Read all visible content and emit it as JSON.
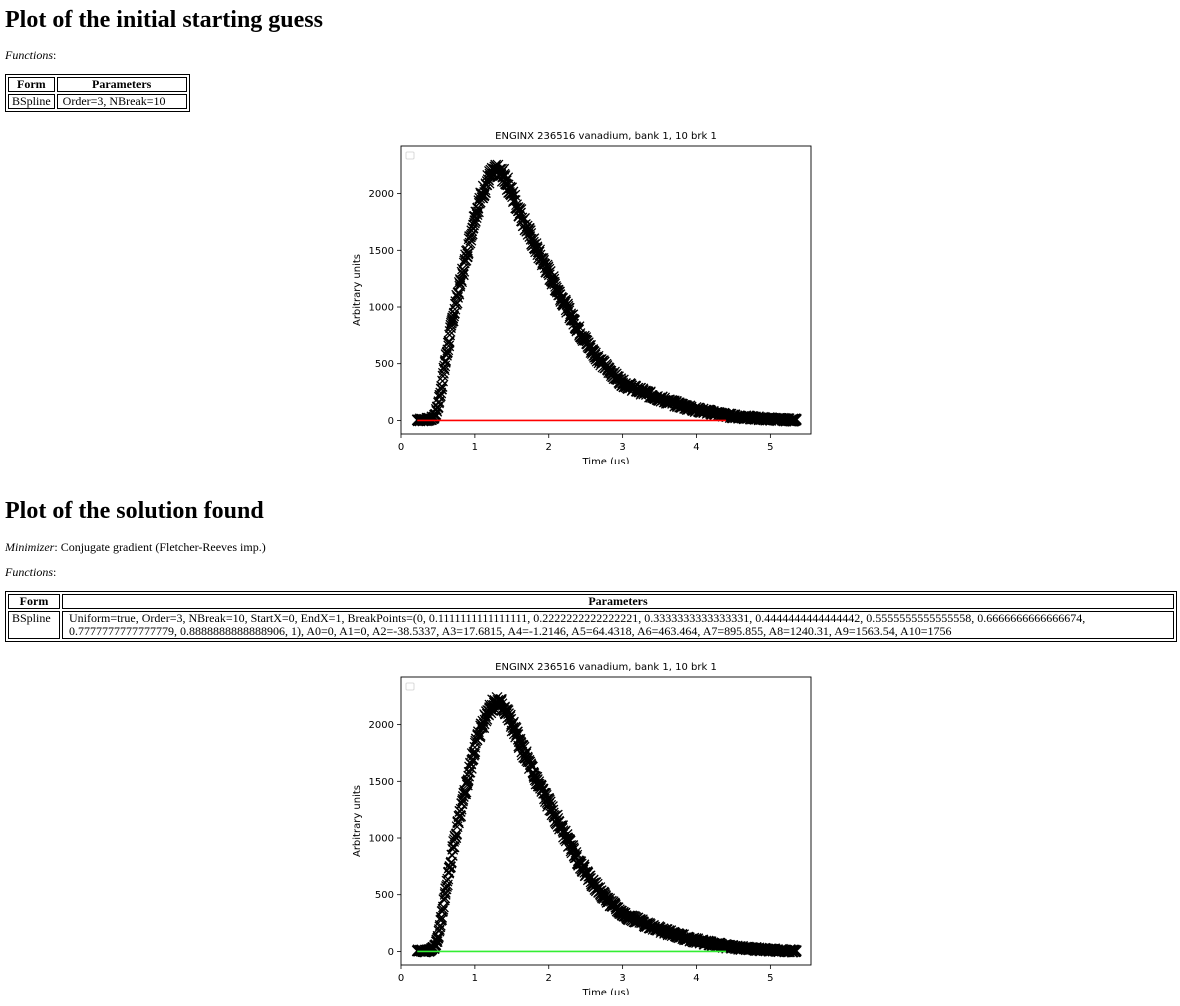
{
  "section1": {
    "heading": "Plot of the initial starting guess",
    "functions_label": "Functions",
    "table": {
      "headers": [
        "Form",
        "Parameters"
      ],
      "rows": [
        [
          "BSpline",
          "Order=3, NBreak=10"
        ]
      ]
    }
  },
  "section2": {
    "heading": "Plot of the solution found",
    "minimizer_label": "Minimizer",
    "minimizer_value": "Conjugate gradient (Fletcher-Reeves imp.)",
    "functions_label": "Functions",
    "table": {
      "headers": [
        "Form",
        "Parameters"
      ],
      "rows": [
        [
          "BSpline",
          "Uniform=true, Order=3, NBreak=10, StartX=0, EndX=1, BreakPoints=(0, 0.1111111111111111, 0.2222222222222221, 0.3333333333333331, 0.4444444444444442, 0.5555555555555558, 0.6666666666666674, 0.7777777777777779, 0.8888888888888906, 1), A0=0, A1=0, A2=-38.5337, A3=17.6815, A4=-1.2146, A5=64.4318, A6=463.464, A7=895.855, A8=1240.31, A9=1563.54, A10=1756"
        ]
      ]
    }
  },
  "chart_data": [
    {
      "type": "scatter",
      "title": "ENGINX 236516 vanadium, bank 1, 10 brk 1",
      "xlabel": "Time (μs)",
      "ylabel": "Arbitrary units",
      "xlim": [
        0,
        5.55
      ],
      "ylim": [
        -120,
        2420
      ],
      "xticks": [
        "0",
        "1",
        "2",
        "3",
        "4",
        "5"
      ],
      "yticks": [
        "0",
        "500",
        "1000",
        "1500",
        "2000"
      ],
      "legend": "upper-left (empty)",
      "series": [
        {
          "kind": "data-points",
          "marker": "x",
          "color": "#000000",
          "x": [
            0.22,
            0.3,
            0.4,
            0.45,
            0.5,
            0.55,
            0.6,
            0.65,
            0.7,
            0.8,
            0.9,
            1.0,
            1.1,
            1.2,
            1.3,
            1.4,
            1.5,
            1.6,
            1.8,
            2.0,
            2.2,
            2.4,
            2.6,
            2.8,
            3.0,
            3.2,
            3.4,
            3.6,
            3.8,
            4.0,
            4.2,
            4.4,
            4.6,
            4.8,
            5.0,
            5.2,
            5.35
          ],
          "y": [
            5,
            5,
            10,
            30,
            120,
            300,
            520,
            700,
            900,
            1200,
            1500,
            1800,
            2000,
            2150,
            2200,
            2150,
            2000,
            1850,
            1550,
            1300,
            1050,
            800,
            600,
            450,
            330,
            270,
            220,
            170,
            130,
            95,
            70,
            45,
            30,
            20,
            12,
            6,
            3
          ]
        },
        {
          "kind": "fit-line",
          "color": "#ff0000",
          "x": [
            0.22,
            4.4
          ],
          "y": [
            0,
            0
          ]
        }
      ]
    },
    {
      "type": "scatter",
      "title": "ENGINX 236516 vanadium, bank 1, 10 brk 1",
      "xlabel": "Time (μs)",
      "ylabel": "Arbitrary units",
      "xlim": [
        0,
        5.55
      ],
      "ylim": [
        -120,
        2420
      ],
      "xticks": [
        "0",
        "1",
        "2",
        "3",
        "4",
        "5"
      ],
      "yticks": [
        "0",
        "500",
        "1000",
        "1500",
        "2000"
      ],
      "legend": "upper-left (empty)",
      "series": [
        {
          "kind": "data-points",
          "marker": "x",
          "color": "#000000",
          "x": [
            0.22,
            0.3,
            0.4,
            0.45,
            0.5,
            0.55,
            0.6,
            0.65,
            0.7,
            0.8,
            0.9,
            1.0,
            1.1,
            1.2,
            1.3,
            1.4,
            1.5,
            1.6,
            1.8,
            2.0,
            2.2,
            2.4,
            2.6,
            2.8,
            3.0,
            3.2,
            3.4,
            3.6,
            3.8,
            4.0,
            4.2,
            4.4,
            4.6,
            4.8,
            5.0,
            5.2,
            5.35
          ],
          "y": [
            5,
            5,
            10,
            30,
            120,
            300,
            520,
            700,
            900,
            1200,
            1500,
            1800,
            2000,
            2150,
            2200,
            2150,
            2000,
            1850,
            1550,
            1300,
            1050,
            800,
            600,
            450,
            330,
            270,
            220,
            170,
            130,
            95,
            70,
            45,
            30,
            20,
            12,
            6,
            3
          ]
        },
        {
          "kind": "fit-line",
          "color": "#33ee33",
          "x": [
            0.22,
            4.4
          ],
          "y": [
            0,
            0
          ]
        }
      ]
    }
  ]
}
